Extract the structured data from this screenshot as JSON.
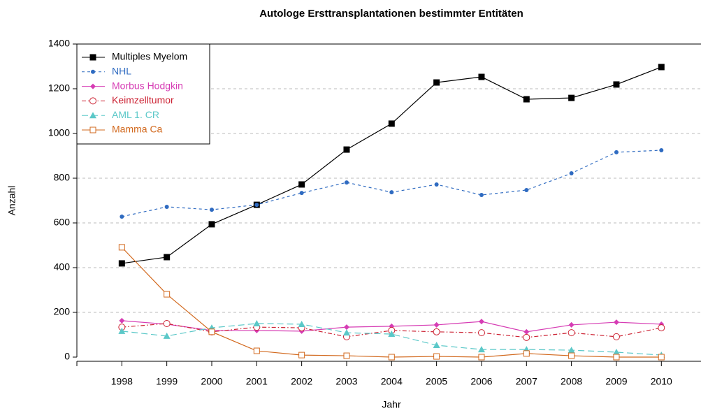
{
  "chart_data": {
    "type": "line",
    "title": "Autologe Ersttransplantationen bestimmter Entitäten",
    "x_label": "Jahr",
    "y_label": "Anzahl",
    "x": [
      1998,
      1999,
      2000,
      2001,
      2002,
      2003,
      2004,
      2005,
      2006,
      2007,
      2008,
      2009,
      2010
    ],
    "xlim": [
      1997,
      2011
    ],
    "xticks": [
      1998,
      1999,
      2000,
      2001,
      2002,
      2003,
      2004,
      2005,
      2006,
      2007,
      2008,
      2009,
      2010
    ],
    "ylim": [
      0,
      1400
    ],
    "yticks": [
      0,
      200,
      400,
      600,
      800,
      1000,
      1200,
      1400
    ],
    "grid": true,
    "legend": "upper left",
    "series": [
      {
        "name": "Multiples Myelom",
        "color": "#000000",
        "marker": "square",
        "linestyle": "solid",
        "values": [
          419,
          447,
          594,
          681,
          772,
          928,
          1044,
          1228,
          1253,
          1153,
          1159,
          1219,
          1297
        ]
      },
      {
        "name": "NHL",
        "color": "#2f6bc1",
        "marker": "circle",
        "linestyle": "dashed",
        "values": [
          628,
          672,
          659,
          681,
          734,
          781,
          737,
          772,
          725,
          747,
          822,
          916,
          925
        ]
      },
      {
        "name": "Morbus Hodgkin",
        "color": "#d63cb4",
        "marker": "diamond",
        "linestyle": "solid",
        "values": [
          163,
          147,
          119,
          119,
          116,
          134,
          138,
          144,
          159,
          113,
          144,
          156,
          147
        ]
      },
      {
        "name": "Keimzelltumor",
        "color": "#cc2233",
        "marker": "open-circle",
        "linestyle": "dashdot",
        "values": [
          134,
          150,
          113,
          134,
          131,
          91,
          119,
          113,
          109,
          88,
          109,
          91,
          131
        ]
      },
      {
        "name": "AML 1. CR",
        "color": "#5bc8c8",
        "marker": "triangle",
        "linestyle": "longdash",
        "values": [
          116,
          94,
          131,
          150,
          147,
          109,
          103,
          53,
          34,
          34,
          31,
          22,
          9
        ]
      },
      {
        "name": "Mamma Ca",
        "color": "#d2691e",
        "marker": "open-square",
        "linestyle": "solid",
        "values": [
          491,
          281,
          113,
          28,
          9,
          6,
          0,
          3,
          0,
          16,
          6,
          0,
          0
        ]
      }
    ]
  }
}
